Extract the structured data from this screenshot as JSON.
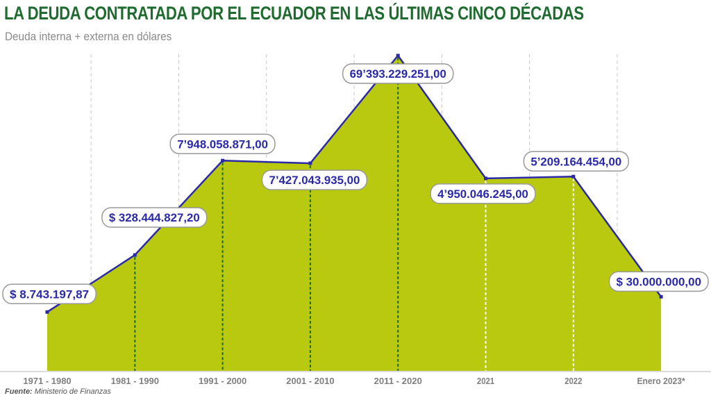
{
  "title": "LA DEUDA CONTRATADA POR EL ECUADOR EN LAS ÚLTIMAS CINCO DÉCADAS",
  "subtitle": "Deuda interna + externa en dólares",
  "source": {
    "label": "Fuente:",
    "text": "Ministerio de Finanzas"
  },
  "colors": {
    "area_fill": "#b8c90f",
    "line": "#2a2aa8",
    "title": "#1f6b2f",
    "label_text": "#2a2aa8",
    "label_border": "#999999",
    "dash_dark": "#1f6b2f",
    "dash_light": "#ffffff",
    "grid": "#c8c8c8"
  },
  "chart_data": {
    "type": "area",
    "title": "LA DEUDA CONTRATADA POR EL ECUADOR EN LAS ÚLTIMAS CINCO DÉCADAS",
    "subtitle": "Deuda interna + externa en dólares",
    "categories": [
      "1971 - 1980",
      "1981 - 1990",
      "1991 - 2000",
      "2001 - 2010",
      "2011 - 2020",
      "2021",
      "2022",
      "Enero 2023*"
    ],
    "values": [
      8743197.87,
      328444827.2,
      7948058871.0,
      7427043935.0,
      69393229251.0,
      4950046245.0,
      5209164454.0,
      30000000.0
    ],
    "data_labels": [
      "$ 8.743.197,87",
      "$ 328.444.827,20",
      "7’948.058.871,00",
      "7’427.043.935,00",
      "69’393.229.251,00",
      "4’950.046.245,00",
      "5’209.164.454,00",
      "$ 30.000.000,00"
    ],
    "y_axis_visible": false,
    "grid": "vertical dashed lines between categories",
    "scale": "non-linear (visual only)",
    "xlabel": "",
    "ylabel": ""
  }
}
